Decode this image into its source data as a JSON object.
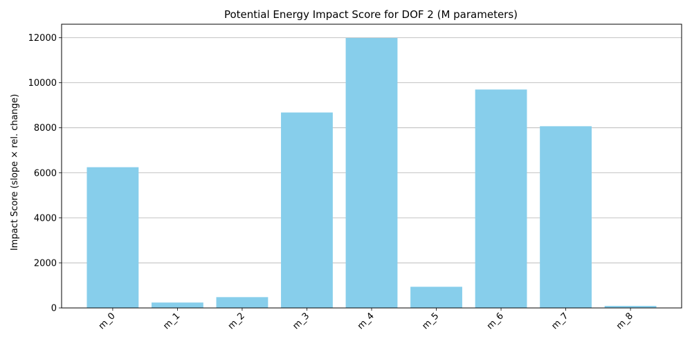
{
  "chart_data": {
    "type": "bar",
    "title": "Potential Energy Impact Score for DOF 2 (M parameters)",
    "xlabel": "",
    "ylabel": "Impact Score (slope × rel. change)",
    "categories": [
      "m_0",
      "m_1",
      "m_2",
      "m_3",
      "m_4",
      "m_5",
      "m_6",
      "m_7",
      "m_8"
    ],
    "values": [
      6250,
      240,
      480,
      8680,
      11990,
      940,
      9700,
      8070,
      90
    ],
    "ylim": [
      0,
      12600
    ],
    "yticks": [
      0,
      2000,
      4000,
      6000,
      8000,
      10000,
      12000
    ],
    "grid": "y",
    "bar_color": "#87CEEB",
    "grid_color": "#b0b0b0",
    "legend": "none"
  }
}
